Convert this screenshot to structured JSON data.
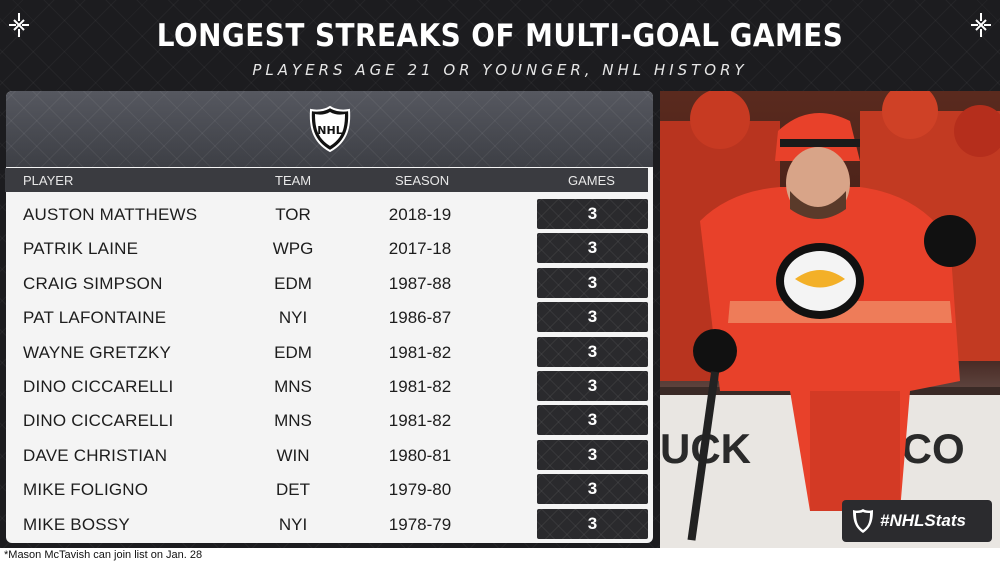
{
  "title": "LONGEST STREAKS OF MULTI-GOAL GAMES",
  "subtitle": "PLAYERS AGE 21 OR YOUNGER, NHL HISTORY",
  "table": {
    "headers": {
      "player": "PLAYER",
      "team": "TEAM",
      "season": "SEASON",
      "games": "GAMES"
    },
    "rows": [
      {
        "player": "AUSTON MATTHEWS",
        "team": "TOR",
        "season": "2018-19",
        "games": "3"
      },
      {
        "player": "PATRIK LAINE",
        "team": "WPG",
        "season": "2017-18",
        "games": "3"
      },
      {
        "player": "CRAIG SIMPSON",
        "team": "EDM",
        "season": "1987-88",
        "games": "3"
      },
      {
        "player": "PAT LAFONTAINE",
        "team": "NYI",
        "season": "1986-87",
        "games": "3"
      },
      {
        "player": "WAYNE GRETZKY",
        "team": "EDM",
        "season": "1981-82",
        "games": "3"
      },
      {
        "player": "DINO CICCARELLI",
        "team": "MNS",
        "season": "1981-82",
        "games": "3"
      },
      {
        "player": "DINO CICCARELLI",
        "team": "MNS",
        "season": "1981-82",
        "games": "3"
      },
      {
        "player": "DAVE CHRISTIAN",
        "team": "WIN",
        "season": "1980-81",
        "games": "3"
      },
      {
        "player": "MIKE FOLIGNO",
        "team": "DET",
        "season": "1979-80",
        "games": "3"
      },
      {
        "player": "MIKE BOSSY",
        "team": "NYI",
        "season": "1978-79",
        "games": "3"
      }
    ]
  },
  "logo": {
    "text": "NHL",
    "icon": "nhl-shield-icon"
  },
  "badge": {
    "hashtag": "#NHLStats"
  },
  "footnote": "*Mason McTavish can join list on Jan. 28",
  "colors": {
    "background": "#1c1c1f",
    "panel": "#f4f4f4",
    "jersey": "#e8412a",
    "games_cell": "#2a2a2d"
  }
}
